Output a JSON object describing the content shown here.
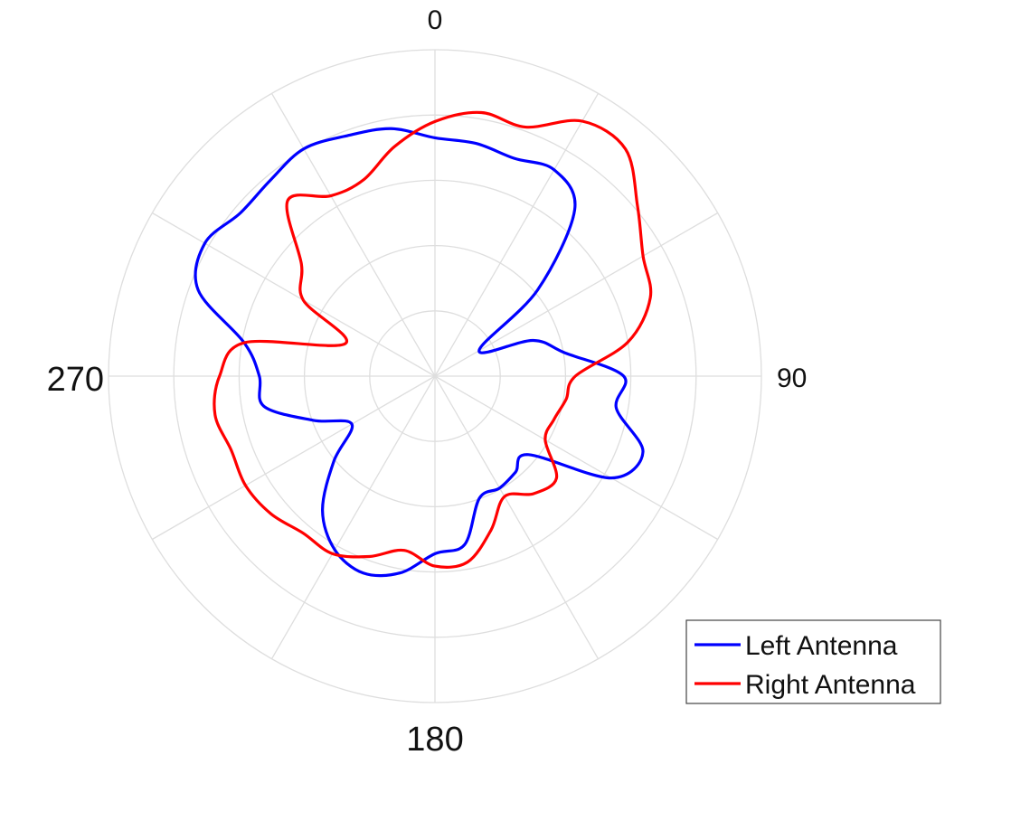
{
  "chart_data": {
    "type": "line",
    "projection": "polar",
    "angle_unit": "degrees",
    "angle_zero": "top",
    "angle_direction": "clockwise",
    "angle_tick_labels": [
      "0",
      "90",
      "180",
      "270"
    ],
    "radial_range": [
      0,
      5
    ],
    "radial_grid_rings": 5,
    "angular_grid_step": 30,
    "grid": true,
    "legend_position": "bottom-right",
    "series": [
      {
        "name": "Left Antenna",
        "color": "#0000ff",
        "angles": [
          0,
          10,
          20,
          30,
          40,
          50,
          60,
          70,
          80,
          90,
          100,
          110,
          120,
          130,
          140,
          150,
          160,
          170,
          180,
          190,
          200,
          210,
          220,
          230,
          240,
          250,
          260,
          270,
          280,
          290,
          300,
          310,
          320,
          330,
          340,
          350,
          360
        ],
        "values": [
          3.65,
          3.62,
          3.55,
          3.65,
          3.33,
          2.05,
          0.78,
          1.6,
          2.03,
          2.89,
          2.82,
          3.39,
          3.12,
          1.87,
          1.92,
          1.98,
          1.99,
          2.62,
          2.72,
          3.06,
          3.21,
          3.07,
          2.68,
          2.02,
          1.47,
          1.98,
          2.66,
          2.69,
          2.97,
          3.86,
          4.07,
          3.89,
          3.92,
          4.02,
          3.92,
          3.85,
          3.65
        ]
      },
      {
        "name": "Right Antenna",
        "color": "#ff0000",
        "angles": [
          0,
          10,
          20,
          30,
          40,
          50,
          60,
          70,
          80,
          90,
          100,
          110,
          120,
          130,
          140,
          150,
          160,
          170,
          180,
          190,
          200,
          210,
          220,
          230,
          240,
          250,
          260,
          270,
          280,
          290,
          300,
          310,
          320,
          330,
          340,
          350,
          360
        ],
        "values": [
          3.9,
          4.1,
          4.06,
          4.51,
          4.54,
          4.05,
          3.68,
          3.51,
          3.0,
          2.15,
          2.04,
          1.94,
          1.95,
          2.43,
          2.35,
          2.13,
          2.51,
          2.89,
          2.91,
          2.71,
          2.94,
          3.14,
          3.14,
          3.28,
          3.35,
          3.32,
          3.42,
          3.3,
          2.96,
          1.46,
          2.33,
          2.67,
          3.51,
          3.19,
          3.2,
          3.57,
          3.9
        ]
      }
    ]
  }
}
